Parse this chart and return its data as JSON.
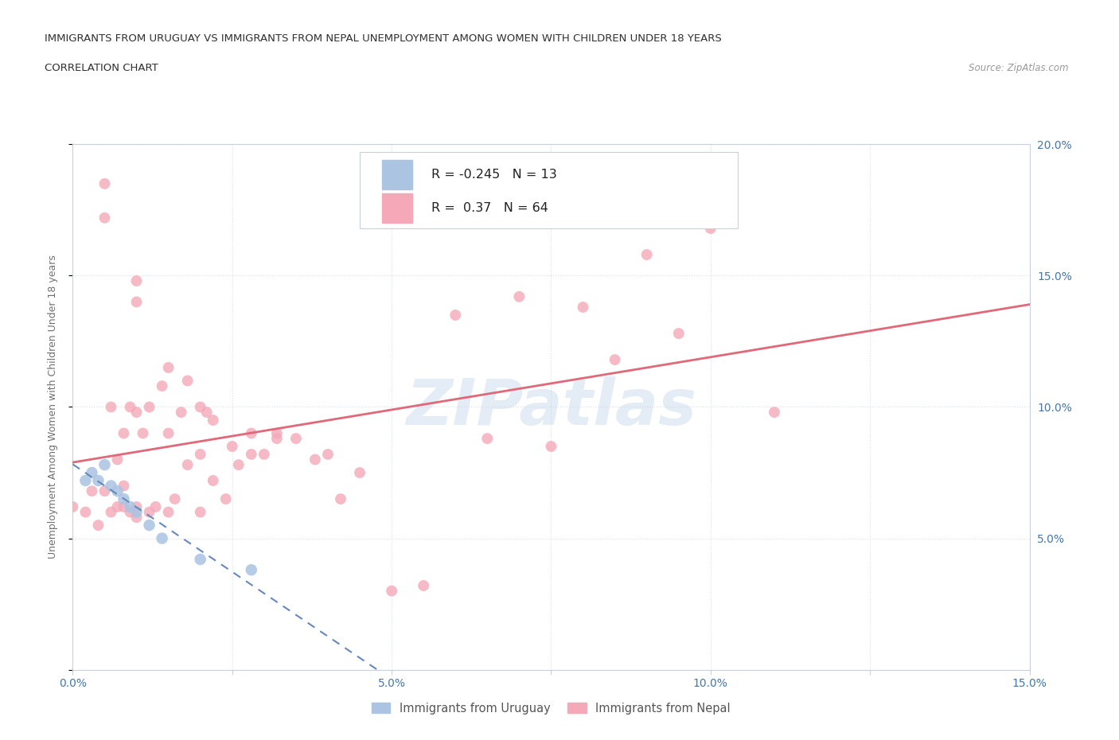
{
  "title_line1": "IMMIGRANTS FROM URUGUAY VS IMMIGRANTS FROM NEPAL UNEMPLOYMENT AMONG WOMEN WITH CHILDREN UNDER 18 YEARS",
  "title_line2": "CORRELATION CHART",
  "source": "Source: ZipAtlas.com",
  "ylabel": "Unemployment Among Women with Children Under 18 years",
  "watermark": "ZIPatlas",
  "xlim": [
    0.0,
    0.15
  ],
  "ylim": [
    0.0,
    0.2
  ],
  "xticks": [
    0.0,
    0.025,
    0.05,
    0.075,
    0.1,
    0.125,
    0.15
  ],
  "yticks": [
    0.0,
    0.05,
    0.1,
    0.15,
    0.2
  ],
  "ytick_labels": [
    "",
    "5.0%",
    "10.0%",
    "15.0%",
    "20.0%"
  ],
  "xtick_labels": [
    "0.0%",
    "",
    "5.0%",
    "",
    "10.0%",
    "",
    "15.0%"
  ],
  "uruguay_R": -0.245,
  "uruguay_N": 13,
  "nepal_R": 0.37,
  "nepal_N": 64,
  "uruguay_color": "#aac4e2",
  "nepal_color": "#f4a8b8",
  "uruguay_line_color": "#6688bb",
  "nepal_line_color": "#e06878",
  "legend_label1": "Immigrants from Uruguay",
  "legend_label2": "Immigrants from Nepal",
  "uruguay_x": [
    0.002,
    0.003,
    0.004,
    0.005,
    0.006,
    0.007,
    0.008,
    0.009,
    0.01,
    0.012,
    0.014,
    0.02,
    0.028
  ],
  "uruguay_y": [
    0.072,
    0.075,
    0.072,
    0.078,
    0.07,
    0.068,
    0.065,
    0.062,
    0.06,
    0.055,
    0.05,
    0.042,
    0.038
  ],
  "nepal_x": [
    0.005,
    0.005,
    0.01,
    0.01,
    0.01,
    0.015,
    0.018,
    0.02,
    0.022,
    0.028,
    0.032,
    0.0,
    0.002,
    0.003,
    0.004,
    0.005,
    0.006,
    0.006,
    0.007,
    0.007,
    0.008,
    0.008,
    0.008,
    0.009,
    0.009,
    0.01,
    0.01,
    0.011,
    0.012,
    0.012,
    0.013,
    0.014,
    0.015,
    0.015,
    0.016,
    0.017,
    0.018,
    0.02,
    0.02,
    0.021,
    0.022,
    0.024,
    0.025,
    0.026,
    0.028,
    0.03,
    0.032,
    0.035,
    0.038,
    0.04,
    0.042,
    0.045,
    0.05,
    0.055,
    0.06,
    0.065,
    0.07,
    0.075,
    0.08,
    0.085,
    0.09,
    0.095,
    0.1,
    0.11
  ],
  "nepal_y": [
    0.185,
    0.172,
    0.148,
    0.14,
    0.098,
    0.115,
    0.11,
    0.1,
    0.095,
    0.09,
    0.09,
    0.062,
    0.06,
    0.068,
    0.055,
    0.068,
    0.06,
    0.1,
    0.062,
    0.08,
    0.062,
    0.07,
    0.09,
    0.06,
    0.1,
    0.058,
    0.062,
    0.09,
    0.06,
    0.1,
    0.062,
    0.108,
    0.06,
    0.09,
    0.065,
    0.098,
    0.078,
    0.06,
    0.082,
    0.098,
    0.072,
    0.065,
    0.085,
    0.078,
    0.082,
    0.082,
    0.088,
    0.088,
    0.08,
    0.082,
    0.065,
    0.075,
    0.03,
    0.032,
    0.135,
    0.088,
    0.142,
    0.085,
    0.138,
    0.118,
    0.158,
    0.128,
    0.168,
    0.098
  ],
  "background_color": "#ffffff",
  "grid_color": "#d8e0ec",
  "axis_color": "#c8d0e0",
  "title_color": "#303030",
  "tick_label_color": "#4477aa",
  "ylabel_color": "#707070"
}
